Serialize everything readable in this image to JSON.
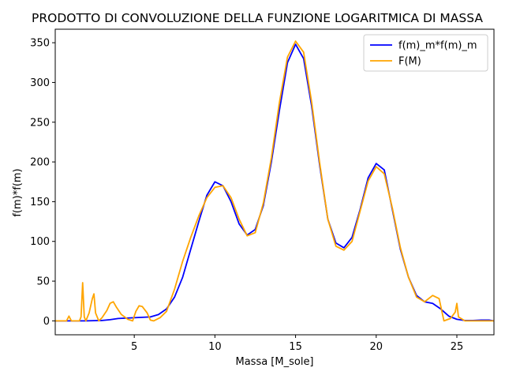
{
  "chart_data": {
    "type": "line",
    "title": "PRODOTTO DI CONVOLUZIONE DELLA FUNZIONE LOGARITMICA DI MASSA",
    "xlabel": "Massa [M_sole]",
    "ylabel": "f(m)*f(m)",
    "xlim": [
      0.1,
      27.3
    ],
    "ylim": [
      -17.5,
      367
    ],
    "xticks": [
      5,
      10,
      15,
      20,
      25
    ],
    "yticks": [
      0,
      50,
      100,
      150,
      200,
      250,
      300,
      350
    ],
    "grid": false,
    "legend_position": "top-right",
    "series": [
      {
        "name": "f(m)_m*f(m)_m",
        "color": "#0000ff",
        "x": [
          0.1,
          1.0,
          2.0,
          3.0,
          3.5,
          4.0,
          5.0,
          6.0,
          6.5,
          7.0,
          7.5,
          8.0,
          8.5,
          9.0,
          9.5,
          10.0,
          10.5,
          11.0,
          11.5,
          12.0,
          12.5,
          13.0,
          13.5,
          14.0,
          14.5,
          15.0,
          15.5,
          16.0,
          16.5,
          17.0,
          17.5,
          18.0,
          18.5,
          19.0,
          19.5,
          20.0,
          20.5,
          21.0,
          21.5,
          22.0,
          22.5,
          23.0,
          23.5,
          24.0,
          24.5,
          25.0,
          25.5,
          26.0,
          26.5,
          27.0,
          27.3
        ],
        "y": [
          0,
          0,
          0,
          0.5,
          1.5,
          3,
          4,
          5,
          8,
          15,
          30,
          55,
          90,
          125,
          158,
          175,
          170,
          150,
          122,
          108,
          115,
          145,
          200,
          265,
          325,
          348,
          330,
          270,
          195,
          128,
          98,
          92,
          105,
          140,
          180,
          198,
          190,
          140,
          90,
          55,
          32,
          24,
          22,
          15,
          6,
          2,
          0.5,
          0.5,
          1,
          1,
          0
        ]
      },
      {
        "name": "F(M)",
        "color": "#ffa500",
        "x": [
          0.1,
          0.8,
          0.95,
          1.1,
          1.3,
          1.6,
          1.7,
          1.8,
          1.9,
          2.0,
          2.2,
          2.4,
          2.5,
          2.6,
          2.8,
          3.0,
          3.3,
          3.5,
          3.7,
          3.9,
          4.2,
          4.6,
          4.9,
          5.1,
          5.3,
          5.5,
          5.8,
          6.0,
          6.2,
          6.6,
          7.0,
          7.5,
          8.0,
          8.5,
          9.0,
          9.5,
          10.0,
          10.5,
          11.0,
          11.5,
          12.0,
          12.5,
          13.0,
          13.5,
          14.0,
          14.5,
          15.0,
          15.5,
          16.0,
          16.5,
          17.0,
          17.5,
          18.0,
          18.5,
          19.0,
          19.5,
          20.0,
          20.5,
          21.0,
          21.5,
          22.0,
          22.5,
          23.0,
          23.5,
          23.9,
          24.2,
          24.6,
          24.9,
          25.0,
          25.1,
          25.5,
          26.0,
          27.0,
          27.3
        ],
        "y": [
          0,
          0,
          6,
          0,
          0,
          0,
          5,
          48,
          5,
          0,
          10,
          28,
          34,
          10,
          0,
          4,
          13,
          22,
          24,
          17,
          8,
          2,
          0,
          12,
          19,
          18,
          10,
          1,
          0,
          4,
          12,
          40,
          75,
          105,
          132,
          155,
          168,
          170,
          155,
          128,
          107,
          111,
          148,
          205,
          275,
          332,
          352,
          338,
          275,
          198,
          128,
          94,
          89,
          100,
          138,
          176,
          194,
          185,
          142,
          92,
          55,
          30,
          24,
          32,
          28,
          0,
          3,
          11,
          22,
          5,
          0,
          0,
          0,
          0
        ]
      }
    ]
  }
}
